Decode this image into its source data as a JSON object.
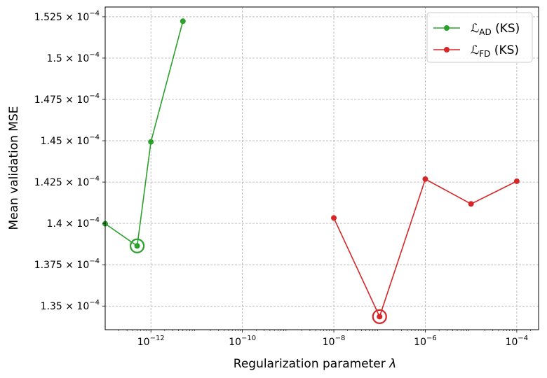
{
  "chart_data": {
    "type": "line",
    "x_scale": "log",
    "xlabel_text": "Regularization parameter ",
    "xlabel_symbol": "λ",
    "ylabel": "Mean validation MSE",
    "x_ticks": [
      {
        "value": 1e-12,
        "base": "10",
        "exp": "−12"
      },
      {
        "value": 1e-10,
        "base": "10",
        "exp": "−10"
      },
      {
        "value": 1e-08,
        "base": "10",
        "exp": "−8"
      },
      {
        "value": 1e-06,
        "base": "10",
        "exp": "−6"
      },
      {
        "value": 0.0001,
        "base": "10",
        "exp": "−4"
      }
    ],
    "y_ticks": [
      {
        "value": 0.000135,
        "mant": "1.35",
        "exp": "−4"
      },
      {
        "value": 0.0001375,
        "mant": "1.375",
        "exp": "−4"
      },
      {
        "value": 0.00014,
        "mant": "1.4",
        "exp": "−4"
      },
      {
        "value": 0.0001425,
        "mant": "1.425",
        "exp": "−4"
      },
      {
        "value": 0.000145,
        "mant": "1.45",
        "exp": "−4"
      },
      {
        "value": 0.0001475,
        "mant": "1.475",
        "exp": "−4"
      },
      {
        "value": 0.00015,
        "mant": "1.5",
        "exp": "−4"
      },
      {
        "value": 0.0001525,
        "mant": "1.525",
        "exp": "−4"
      }
    ],
    "xlim": [
      1e-13,
      0.0003
    ],
    "ylim": [
      0.00013357,
      0.00015309
    ],
    "grid": true,
    "legend_position": "top-right",
    "series": [
      {
        "legend_main": "ℒ",
        "legend_sub": "AD",
        "legend_suffix": " (KS)",
        "color": "#2ca02c",
        "x": [
          1e-13,
          5e-13,
          1e-12,
          5e-12
        ],
        "y": [
          0.00013998,
          0.00013864,
          0.00014493,
          0.00015223
        ],
        "highlight_index": 1
      },
      {
        "legend_main": "ℒ",
        "legend_sub": "FD",
        "legend_suffix": " (KS)",
        "color": "#d62728",
        "x": [
          1e-08,
          1e-07,
          1e-06,
          1e-05,
          0.0001
        ],
        "y": [
          0.00014033,
          0.00013436,
          0.00014268,
          0.00014118,
          0.00014255
        ],
        "highlight_index": 1
      }
    ]
  }
}
